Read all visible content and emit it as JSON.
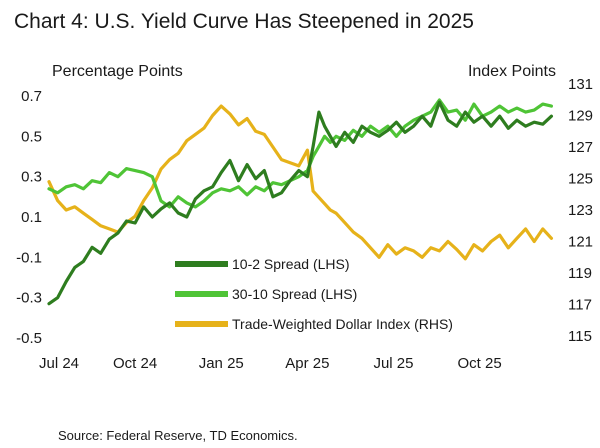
{
  "chart_data": {
    "type": "line",
    "title": "Chart 4: U.S. Yield Curve Has Steepened in 2025",
    "ylabel_left": "Percentage Points",
    "ylabel_right": "Index Points",
    "source": "Source: Federal Reserve, TD Economics.",
    "x_ticks": [
      "Jul 24",
      "Oct 24",
      "Jan 25",
      "Apr 25",
      "Jul 25",
      "Oct 25"
    ],
    "x_tick_months": [
      0,
      3,
      6,
      9,
      12,
      15
    ],
    "x_range_months": [
      0,
      17.8
    ],
    "y_left_ticks": [
      "0.7",
      "0.5",
      "0.3",
      "0.1",
      "-0.1",
      "-0.3",
      "-0.5"
    ],
    "y_left_range": [
      -0.5,
      0.7
    ],
    "y_right_ticks": [
      "131",
      "129",
      "127",
      "125",
      "123",
      "121",
      "119",
      "117",
      "115"
    ],
    "y_right_range": [
      115,
      131
    ],
    "grid": false,
    "legend_placement": "bottom-center",
    "x_unit": "months since Jul 2024",
    "series": [
      {
        "name": "10-2 Spread (LHS)",
        "axis": "left",
        "color": "#2e7d1f",
        "x": [
          0,
          0.3,
          0.6,
          0.9,
          1.2,
          1.5,
          1.8,
          2.1,
          2.4,
          2.7,
          3.0,
          3.3,
          3.6,
          3.9,
          4.2,
          4.5,
          4.8,
          5.1,
          5.4,
          5.7,
          6.0,
          6.3,
          6.6,
          6.9,
          7.2,
          7.5,
          7.8,
          8.1,
          8.4,
          8.7,
          9.0,
          9.2,
          9.4,
          9.6,
          9.8,
          10.0,
          10.3,
          10.6,
          10.9,
          11.2,
          11.5,
          11.8,
          12.1,
          12.4,
          12.7,
          13.0,
          13.3,
          13.6,
          13.9,
          14.2,
          14.5,
          14.8,
          15.1,
          15.4,
          15.7,
          16.0,
          16.3,
          16.6,
          16.9,
          17.2,
          17.5
        ],
        "values": [
          -0.33,
          -0.3,
          -0.22,
          -0.15,
          -0.12,
          -0.05,
          -0.08,
          -0.01,
          0.02,
          0.08,
          0.07,
          0.15,
          0.1,
          0.14,
          0.17,
          0.12,
          0.1,
          0.19,
          0.23,
          0.25,
          0.32,
          0.38,
          0.28,
          0.36,
          0.29,
          0.33,
          0.2,
          0.22,
          0.28,
          0.33,
          0.3,
          0.45,
          0.62,
          0.55,
          0.5,
          0.45,
          0.52,
          0.47,
          0.55,
          0.52,
          0.5,
          0.53,
          0.57,
          0.52,
          0.55,
          0.6,
          0.55,
          0.67,
          0.58,
          0.55,
          0.62,
          0.57,
          0.6,
          0.55,
          0.6,
          0.54,
          0.58,
          0.55,
          0.57,
          0.56,
          0.6
        ]
      },
      {
        "name": "30-10 Spread (LHS)",
        "axis": "left",
        "color": "#4fc436",
        "x": [
          0,
          0.3,
          0.6,
          0.9,
          1.2,
          1.5,
          1.8,
          2.1,
          2.4,
          2.7,
          3.0,
          3.3,
          3.6,
          3.9,
          4.2,
          4.5,
          4.8,
          5.1,
          5.4,
          5.7,
          6.0,
          6.3,
          6.6,
          6.9,
          7.2,
          7.5,
          7.8,
          8.1,
          8.4,
          8.7,
          9.0,
          9.2,
          9.4,
          9.6,
          9.8,
          10.0,
          10.3,
          10.6,
          10.9,
          11.2,
          11.5,
          11.8,
          12.1,
          12.4,
          12.7,
          13.0,
          13.3,
          13.6,
          13.9,
          14.2,
          14.5,
          14.8,
          15.1,
          15.4,
          15.7,
          16.0,
          16.3,
          16.6,
          16.9,
          17.2,
          17.5
        ],
        "values": [
          0.24,
          0.22,
          0.25,
          0.26,
          0.24,
          0.28,
          0.27,
          0.32,
          0.3,
          0.34,
          0.33,
          0.32,
          0.3,
          0.18,
          0.15,
          0.2,
          0.17,
          0.15,
          0.18,
          0.22,
          0.24,
          0.23,
          0.25,
          0.21,
          0.25,
          0.23,
          0.27,
          0.26,
          0.28,
          0.3,
          0.33,
          0.4,
          0.45,
          0.5,
          0.47,
          0.5,
          0.48,
          0.53,
          0.5,
          0.55,
          0.52,
          0.55,
          0.5,
          0.55,
          0.58,
          0.6,
          0.62,
          0.68,
          0.62,
          0.63,
          0.58,
          0.66,
          0.6,
          0.62,
          0.65,
          0.62,
          0.64,
          0.62,
          0.63,
          0.66,
          0.65
        ]
      },
      {
        "name": "Trade-Weighted Dollar Index (RHS)",
        "axis": "right",
        "color": "#e6b21a",
        "x": [
          0,
          0.3,
          0.6,
          0.9,
          1.2,
          1.5,
          1.8,
          2.1,
          2.4,
          2.7,
          3.0,
          3.3,
          3.6,
          3.9,
          4.2,
          4.5,
          4.8,
          5.1,
          5.4,
          5.7,
          6.0,
          6.3,
          6.6,
          6.9,
          7.2,
          7.5,
          7.8,
          8.1,
          8.4,
          8.7,
          9.0,
          9.2,
          9.4,
          9.6,
          9.8,
          10.0,
          10.3,
          10.6,
          10.9,
          11.2,
          11.5,
          11.8,
          12.1,
          12.4,
          12.7,
          13.0,
          13.3,
          13.6,
          13.9,
          14.2,
          14.5,
          14.8,
          15.1,
          15.4,
          15.7,
          16.0,
          16.3,
          16.6,
          16.9,
          17.2,
          17.5
        ],
        "values": [
          124.8,
          123.6,
          123.0,
          123.2,
          122.8,
          122.4,
          122.0,
          121.8,
          121.6,
          122.2,
          122.6,
          123.6,
          124.4,
          125.6,
          126.2,
          126.6,
          127.4,
          127.8,
          128.2,
          129.0,
          129.6,
          129.1,
          128.4,
          128.8,
          128.0,
          127.8,
          127.0,
          126.2,
          126.0,
          125.8,
          126.8,
          124.2,
          123.8,
          123.4,
          123.0,
          122.8,
          122.2,
          121.6,
          121.2,
          120.6,
          120.0,
          120.8,
          120.2,
          120.6,
          120.4,
          120.0,
          120.6,
          120.4,
          121.0,
          120.5,
          119.9,
          120.8,
          120.4,
          121.0,
          121.4,
          120.6,
          121.2,
          121.8,
          121.0,
          121.8,
          121.2
        ]
      }
    ]
  }
}
